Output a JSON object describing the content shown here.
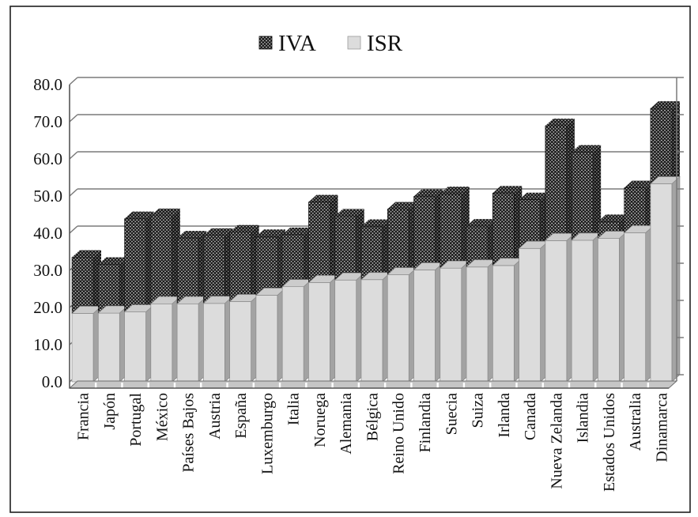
{
  "chart_data": {
    "type": "bar",
    "stacked": true,
    "style": "3d-effect",
    "title": "",
    "xlabel": "",
    "ylabel": "",
    "ylim": [
      0,
      80
    ],
    "ytick_step": 10,
    "ytick_labels": [
      "0.0",
      "10.0",
      "20.0",
      "30.0",
      "40.0",
      "50.0",
      "60.0",
      "70.0",
      "80.0"
    ],
    "grid": true,
    "legend_position": "top-center",
    "legend": [
      "IVA",
      "ISR"
    ],
    "categories": [
      "Francia",
      "Japón",
      "Portugal",
      "México",
      "Países Bajos",
      "Austria",
      "España",
      "Luxemburgo",
      "Italia",
      "Noruega",
      "Alemania",
      "Bélgica",
      "Reino Unido",
      "Finlandia",
      "Suecia",
      "Suiza",
      "Irlanda",
      "Canada",
      "Nueva Zelanda",
      "Islandia",
      "Estados Unidos",
      "Australia",
      "Dinamarca"
    ],
    "series": [
      {
        "name": "ISR",
        "stack_order": "bottom",
        "values": [
          18.4,
          18.5,
          18.8,
          21.0,
          21.0,
          21.1,
          21.6,
          23.3,
          25.6,
          26.7,
          27.4,
          27.5,
          28.8,
          30.1,
          30.6,
          30.9,
          31.3,
          35.9,
          38.0,
          38.1,
          38.6,
          40.1,
          53.3
        ]
      },
      {
        "name": "IVA",
        "stack_order": "top",
        "values": [
          15.1,
          13.1,
          25.1,
          23.7,
          17.7,
          18.3,
          18.7,
          15.8,
          14.0,
          21.7,
          17.2,
          14.3,
          17.7,
          19.8,
          20.0,
          11.0,
          19.5,
          13.1,
          30.9,
          23.7,
          4.5,
          12.1,
          20.3
        ]
      }
    ],
    "colors": {
      "iva_pattern_dark": "#1b1b1b",
      "iva_pattern_dot": "#e6e6e6",
      "isr_front": "#dcdcdc",
      "isr_top": "#cccccc",
      "isr_side": "#a3a3a3",
      "gridline": "#7a7a7a",
      "frame": "#1f1f1f",
      "background": "#ffffff"
    }
  },
  "legend_items": {
    "iva_label": "IVA",
    "isr_label": "ISR"
  }
}
